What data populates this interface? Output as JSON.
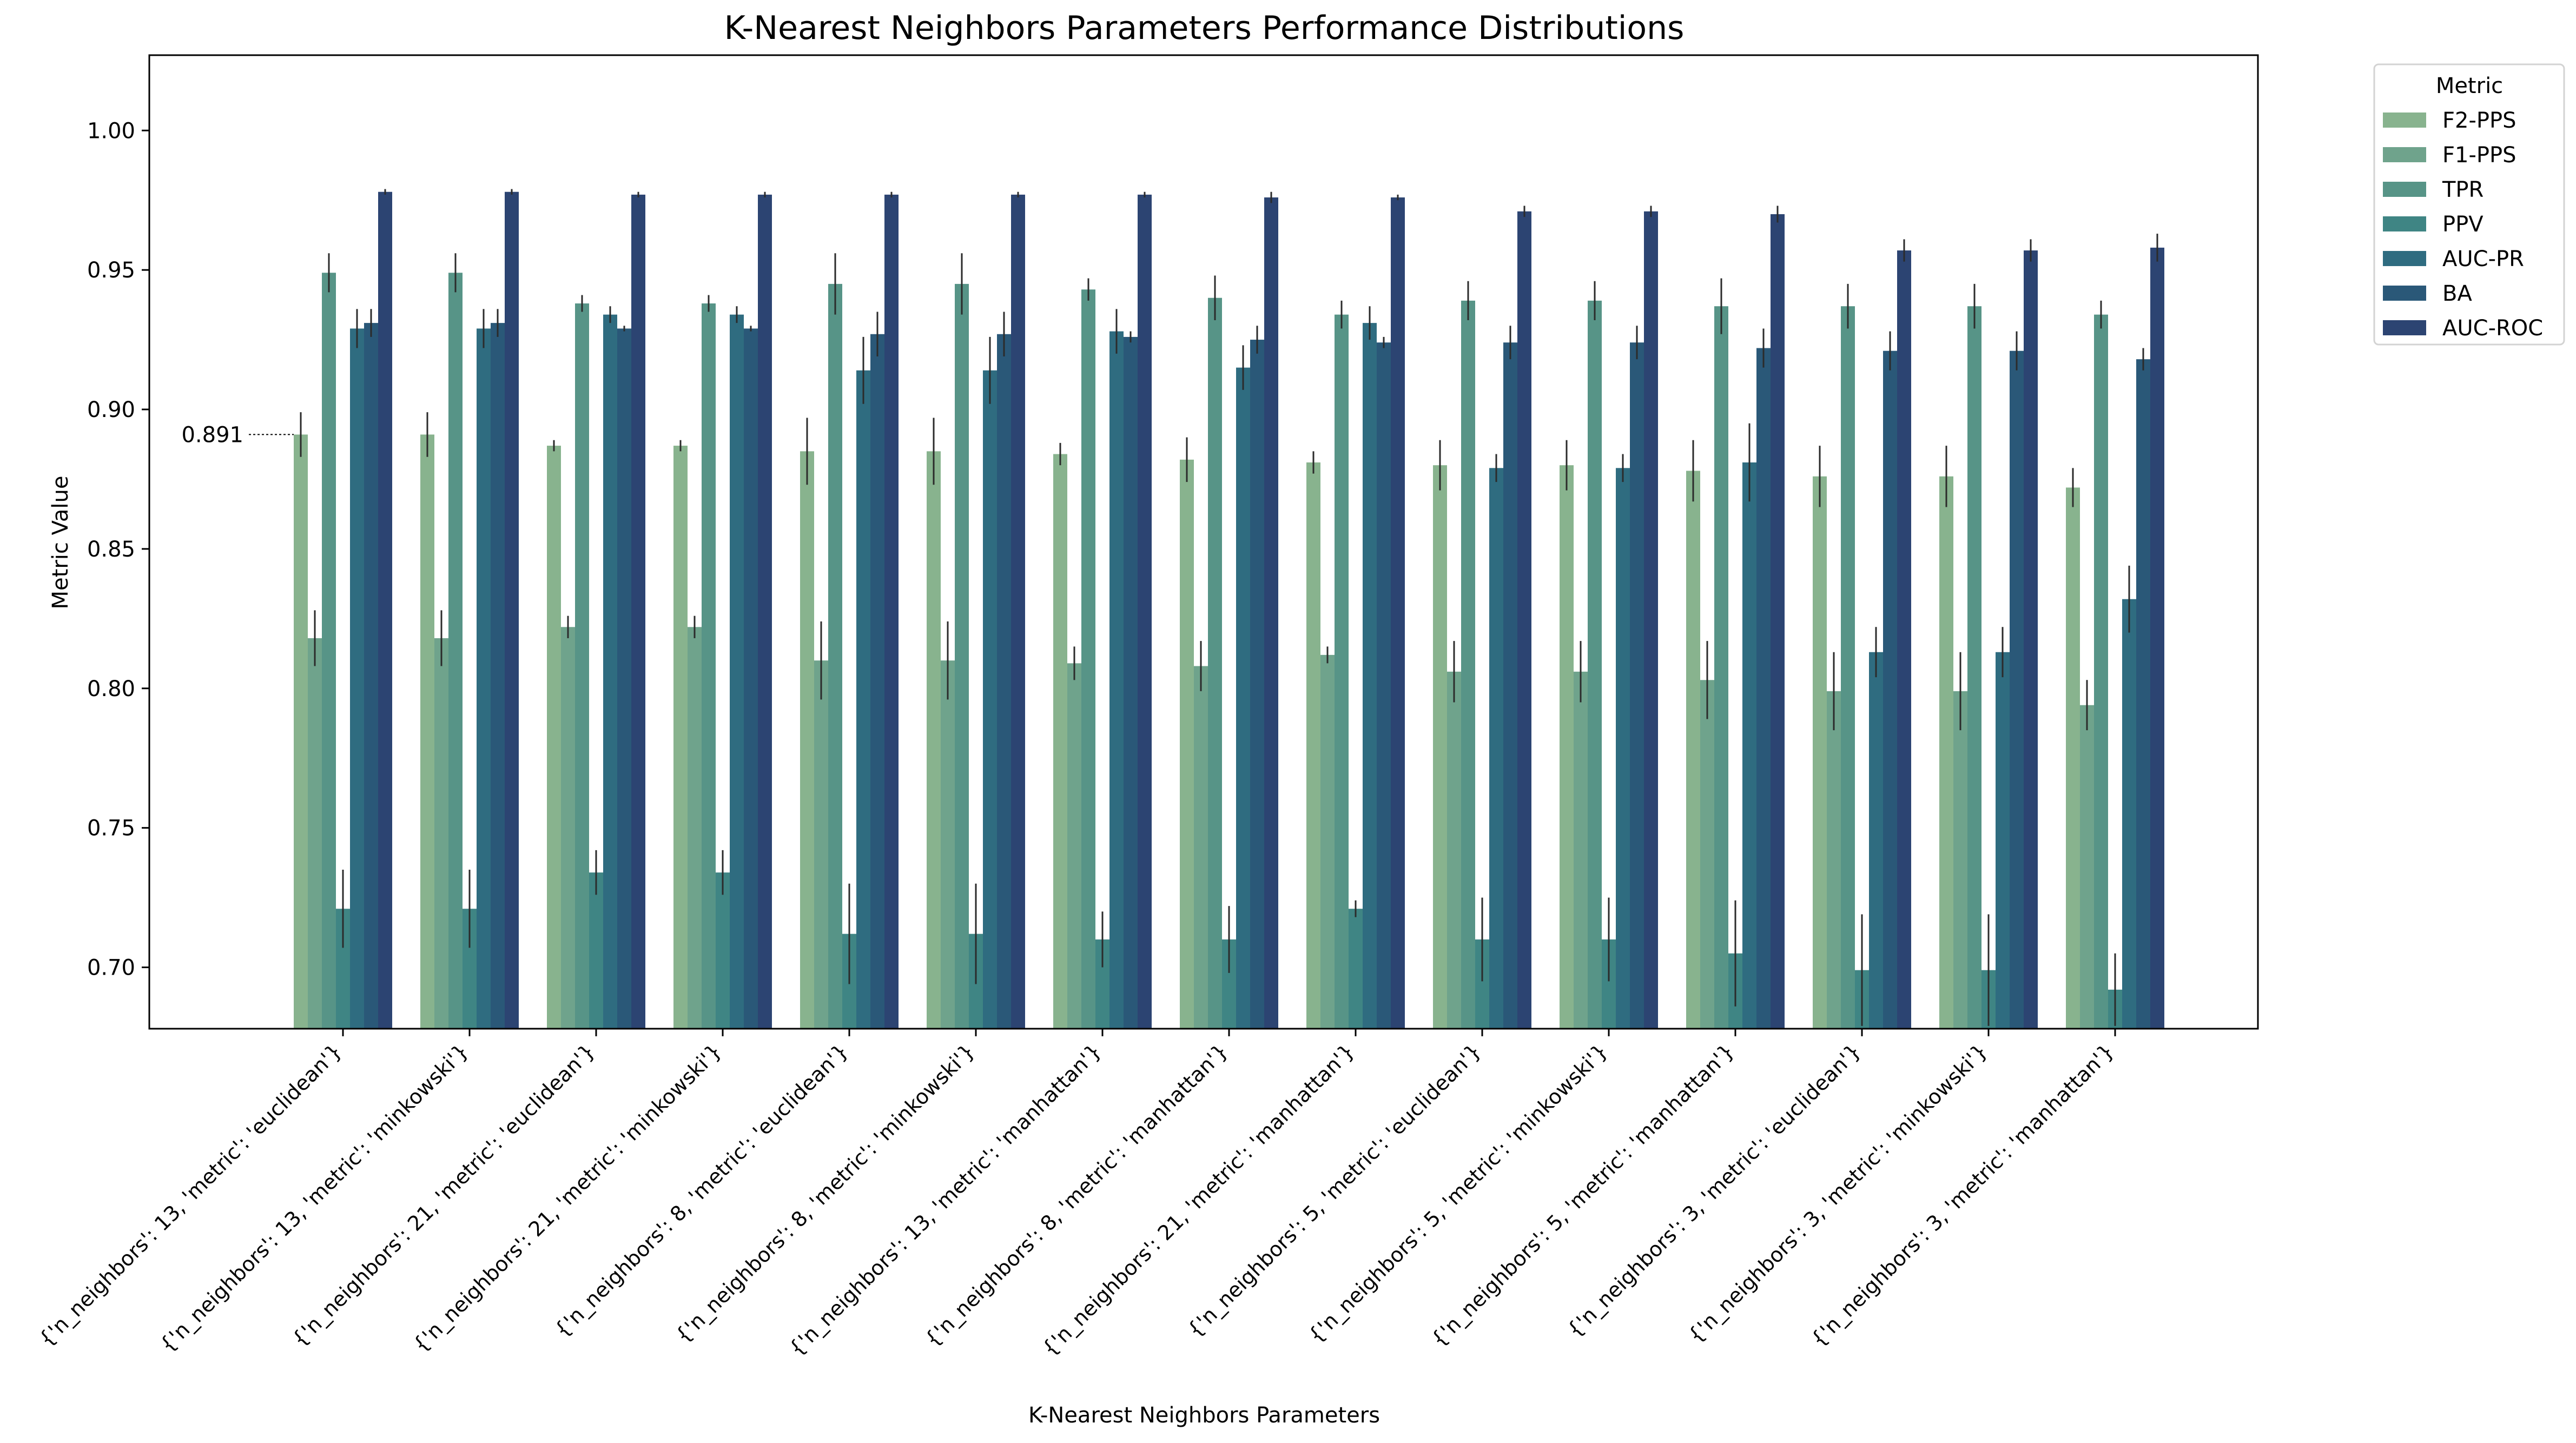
{
  "chart_data": {
    "type": "bar",
    "title": "K-Nearest Neighbors Parameters Performance Distributions",
    "xlabel": "K-Nearest Neighbors Parameters",
    "ylabel": "Metric Value",
    "ylim": [
      0.678,
      1.027
    ],
    "yticks": [
      "0.70",
      "0.75",
      "0.80",
      "0.85",
      "0.90",
      "0.95",
      "1.00"
    ],
    "grid": false,
    "legend": {
      "title": "Metric",
      "placement": "outside-top-right"
    },
    "annotation": {
      "text": "0.891",
      "category_index": 0,
      "series_index": 0,
      "value": 0.891
    },
    "categories": [
      "{'n_neighbors': 13, 'metric': 'euclidean'}",
      "{'n_neighbors': 13, 'metric': 'minkowski'}",
      "{'n_neighbors': 21, 'metric': 'euclidean'}",
      "{'n_neighbors': 21, 'metric': 'minkowski'}",
      "{'n_neighbors': 8, 'metric': 'euclidean'}",
      "{'n_neighbors': 8, 'metric': 'minkowski'}",
      "{'n_neighbors': 13, 'metric': 'manhattan'}",
      "{'n_neighbors': 8, 'metric': 'manhattan'}",
      "{'n_neighbors': 21, 'metric': 'manhattan'}",
      "{'n_neighbors': 5, 'metric': 'euclidean'}",
      "{'n_neighbors': 5, 'metric': 'minkowski'}",
      "{'n_neighbors': 5, 'metric': 'manhattan'}",
      "{'n_neighbors': 3, 'metric': 'euclidean'}",
      "{'n_neighbors': 3, 'metric': 'minkowski'}",
      "{'n_neighbors': 3, 'metric': 'manhattan'}"
    ],
    "series": [
      {
        "name": "F2-PPS",
        "color": "#88b38e",
        "values": [
          0.891,
          0.891,
          0.887,
          0.887,
          0.885,
          0.885,
          0.884,
          0.882,
          0.881,
          0.88,
          0.88,
          0.878,
          0.876,
          0.876,
          0.872
        ],
        "errors": [
          0.008,
          0.008,
          0.002,
          0.002,
          0.012,
          0.012,
          0.004,
          0.008,
          0.004,
          0.009,
          0.009,
          0.011,
          0.011,
          0.011,
          0.007
        ]
      },
      {
        "name": "F1-PPS",
        "color": "#6fa38c",
        "values": [
          0.818,
          0.818,
          0.822,
          0.822,
          0.81,
          0.81,
          0.809,
          0.808,
          0.812,
          0.806,
          0.806,
          0.803,
          0.799,
          0.799,
          0.794
        ],
        "errors": [
          0.01,
          0.01,
          0.004,
          0.004,
          0.014,
          0.014,
          0.006,
          0.009,
          0.003,
          0.011,
          0.011,
          0.014,
          0.014,
          0.014,
          0.009
        ]
      },
      {
        "name": "TPR",
        "color": "#579487",
        "values": [
          0.949,
          0.949,
          0.938,
          0.938,
          0.945,
          0.945,
          0.943,
          0.94,
          0.934,
          0.939,
          0.939,
          0.937,
          0.937,
          0.937,
          0.934
        ],
        "errors": [
          0.007,
          0.007,
          0.003,
          0.003,
          0.011,
          0.011,
          0.004,
          0.008,
          0.005,
          0.007,
          0.007,
          0.01,
          0.008,
          0.008,
          0.005
        ]
      },
      {
        "name": "PPV",
        "color": "#3f8584",
        "values": [
          0.721,
          0.721,
          0.734,
          0.734,
          0.712,
          0.712,
          0.71,
          0.71,
          0.721,
          0.71,
          0.71,
          0.705,
          0.699,
          0.699,
          0.692
        ],
        "errors": [
          0.014,
          0.014,
          0.008,
          0.008,
          0.018,
          0.018,
          0.01,
          0.012,
          0.003,
          0.015,
          0.015,
          0.019,
          0.02,
          0.02,
          0.013
        ]
      },
      {
        "name": "AUC-PR",
        "color": "#2f6c80",
        "values": [
          0.929,
          0.929,
          0.934,
          0.934,
          0.914,
          0.914,
          0.928,
          0.915,
          0.931,
          0.879,
          0.879,
          0.881,
          0.813,
          0.813,
          0.832
        ],
        "errors": [
          0.007,
          0.007,
          0.003,
          0.003,
          0.012,
          0.012,
          0.008,
          0.008,
          0.006,
          0.005,
          0.005,
          0.014,
          0.009,
          0.009,
          0.012
        ]
      },
      {
        "name": "BA",
        "color": "#2a5878",
        "values": [
          0.931,
          0.931,
          0.929,
          0.929,
          0.927,
          0.927,
          0.926,
          0.925,
          0.924,
          0.924,
          0.924,
          0.922,
          0.921,
          0.921,
          0.918
        ],
        "errors": [
          0.005,
          0.005,
          0.001,
          0.001,
          0.008,
          0.008,
          0.002,
          0.005,
          0.002,
          0.006,
          0.006,
          0.007,
          0.007,
          0.007,
          0.004
        ]
      },
      {
        "name": "AUC-ROC",
        "color": "#2c4472",
        "values": [
          0.978,
          0.978,
          0.977,
          0.977,
          0.977,
          0.977,
          0.977,
          0.976,
          0.976,
          0.971,
          0.971,
          0.97,
          0.957,
          0.957,
          0.958
        ],
        "errors": [
          0.001,
          0.001,
          0.001,
          0.001,
          0.001,
          0.001,
          0.001,
          0.002,
          0.001,
          0.002,
          0.002,
          0.003,
          0.004,
          0.004,
          0.005
        ]
      }
    ]
  }
}
